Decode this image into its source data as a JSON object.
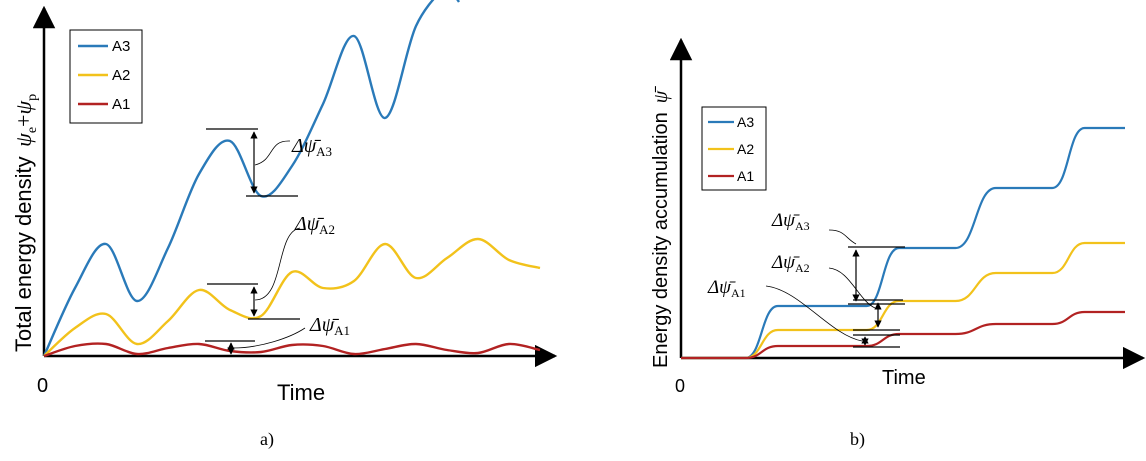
{
  "chart_data": [
    {
      "panel": "a)",
      "type": "line",
      "xlabel": "Time",
      "ylabel_text": "Total energy density",
      "ylabel_symbol": "ψe+ψp",
      "origin_label": "0",
      "grid": false,
      "legend_position": "top-left",
      "x": [
        0,
        0.5,
        1.0,
        1.5,
        2.0,
        2.5,
        3.0,
        3.5,
        4.0,
        4.5,
        5.0,
        5.5,
        6.0,
        6.5,
        7.0,
        7.5,
        8.0
      ],
      "series": [
        {
          "name": "A3",
          "color": "#2a7ab9",
          "values": [
            0,
            68,
            112,
            55,
            108,
            182,
            215,
            160,
            190,
            252,
            320,
            238,
            330,
            372,
            null,
            null,
            null
          ]
        },
        {
          "name": "A2",
          "color": "#f2c21b",
          "values": [
            0,
            28,
            42,
            12,
            35,
            66,
            46,
            40,
            84,
            68,
            75,
            112,
            78,
            98,
            117,
            96,
            88
          ]
        },
        {
          "name": "A1",
          "color": "#b22222",
          "values": [
            0,
            10,
            12,
            2,
            8,
            12,
            5,
            4,
            11,
            10,
            2,
            7,
            12,
            6,
            3,
            12,
            6
          ]
        }
      ],
      "annotations": [
        {
          "series": "A3",
          "text": "Δψ̄A3"
        },
        {
          "series": "A2",
          "text": "Δψ̄A2"
        },
        {
          "series": "A1",
          "text": "Δψ̄A1"
        }
      ]
    },
    {
      "panel": "b)",
      "type": "line",
      "xlabel": "Time",
      "ylabel_text": "Energy density accumulation",
      "ylabel_symbol": "ψ̄",
      "origin_label": "0",
      "grid": false,
      "legend_position": "center-left",
      "series": [
        {
          "name": "A3",
          "color": "#2a7ab9",
          "steps": [
            [
              0,
              0
            ],
            [
              0.8,
              0
            ],
            [
              1.2,
              52
            ],
            [
              2.3,
              52
            ],
            [
              2.7,
              110
            ],
            [
              3.4,
              110
            ],
            [
              3.9,
              170
            ],
            [
              4.6,
              170
            ],
            [
              5.0,
              230
            ],
            [
              5.5,
              230
            ]
          ]
        },
        {
          "name": "A2",
          "color": "#f2c21b",
          "steps": [
            [
              0,
              0
            ],
            [
              0.8,
              0
            ],
            [
              1.2,
              28
            ],
            [
              2.3,
              28
            ],
            [
              2.7,
              57
            ],
            [
              3.4,
              57
            ],
            [
              3.9,
              85
            ],
            [
              4.6,
              85
            ],
            [
              5.0,
              115
            ],
            [
              5.5,
              115
            ]
          ]
        },
        {
          "name": "A1",
          "color": "#b22222",
          "steps": [
            [
              0,
              0
            ],
            [
              0.8,
              0
            ],
            [
              1.2,
              12
            ],
            [
              2.3,
              12
            ],
            [
              2.7,
              24
            ],
            [
              3.4,
              24
            ],
            [
              3.9,
              34
            ],
            [
              4.6,
              34
            ],
            [
              5.0,
              46
            ],
            [
              5.5,
              46
            ]
          ]
        }
      ],
      "annotations": [
        {
          "series": "A3",
          "text": "Δψ̄A3"
        },
        {
          "series": "A2",
          "text": "Δψ̄A2"
        },
        {
          "series": "A1",
          "text": "Δψ̄A1"
        }
      ]
    }
  ],
  "legend_labels": [
    "A3",
    "A2",
    "A1"
  ],
  "ann": {
    "delta_psi": "Δψ̄",
    "sub_a3": "A3",
    "sub_a2": "A2",
    "sub_a1": "A1"
  },
  "panel_a": {
    "ylabel_text": "Total energy density",
    "sym_psi_e": "ψ",
    "sub_e": "e",
    "plus": "+",
    "sym_psi_p": "ψ",
    "sub_p": "p",
    "xlabel": "Time",
    "origin": "0",
    "caption": "a)"
  },
  "panel_b": {
    "ylabel_text": "Energy density accumulation",
    "sym_psi_bar": "ψ̄",
    "xlabel": "Time",
    "origin": "0",
    "caption": "b)"
  }
}
